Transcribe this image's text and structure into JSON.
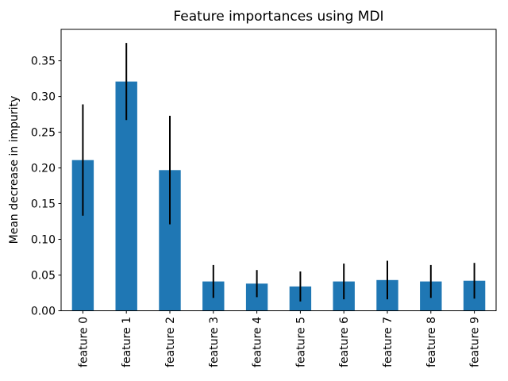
{
  "chart_data": {
    "type": "bar",
    "title": "Feature importances using MDI",
    "xlabel": "",
    "ylabel": "Mean decrease in impurity",
    "categories": [
      "feature 0",
      "feature 1",
      "feature 2",
      "feature 3",
      "feature 4",
      "feature 5",
      "feature 6",
      "feature 7",
      "feature 8",
      "feature 9"
    ],
    "values": [
      0.211,
      0.321,
      0.197,
      0.041,
      0.038,
      0.034,
      0.041,
      0.043,
      0.041,
      0.042
    ],
    "yerr": [
      0.078,
      0.054,
      0.076,
      0.023,
      0.019,
      0.021,
      0.025,
      0.027,
      0.023,
      0.025
    ],
    "yticks": [
      0.0,
      0.05,
      0.1,
      0.15,
      0.2,
      0.25,
      0.3,
      0.35
    ],
    "ytick_labels": [
      "0.00",
      "0.05",
      "0.10",
      "0.15",
      "0.20",
      "0.25",
      "0.30",
      "0.35"
    ],
    "ylim": [
      0,
      0.394
    ],
    "bar_color": "#1f77b4",
    "error_color": "#000000",
    "spine_color": "#000000",
    "background_color": "#ffffff",
    "grid": false,
    "legend": null,
    "xtick_rotation_deg": 90,
    "bar_width_fraction": 0.5
  }
}
